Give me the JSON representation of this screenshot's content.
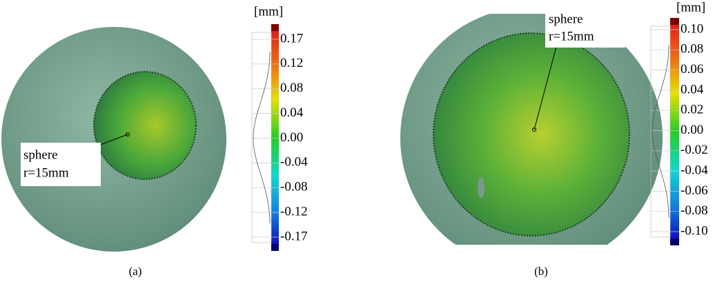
{
  "panels": [
    {
      "unit": "[mm]",
      "ticks": [
        "0.17",
        "0.12",
        "0.08",
        "0.04",
        "0.00",
        "-0.04",
        "-0.08",
        "-0.12",
        "-0.17"
      ],
      "annotation": [
        "sphere",
        "r=15mm"
      ],
      "caption": "(a)"
    },
    {
      "unit": "[mm]",
      "ticks": [
        "0.10",
        "0.08",
        "0.06",
        "0.04",
        "0.02",
        "0.00",
        "-0.02",
        "-0.04",
        "-0.06",
        "-0.08",
        "-0.10"
      ],
      "annotation": [
        "sphere",
        "r=15mm"
      ],
      "caption": "(b)"
    }
  ]
}
